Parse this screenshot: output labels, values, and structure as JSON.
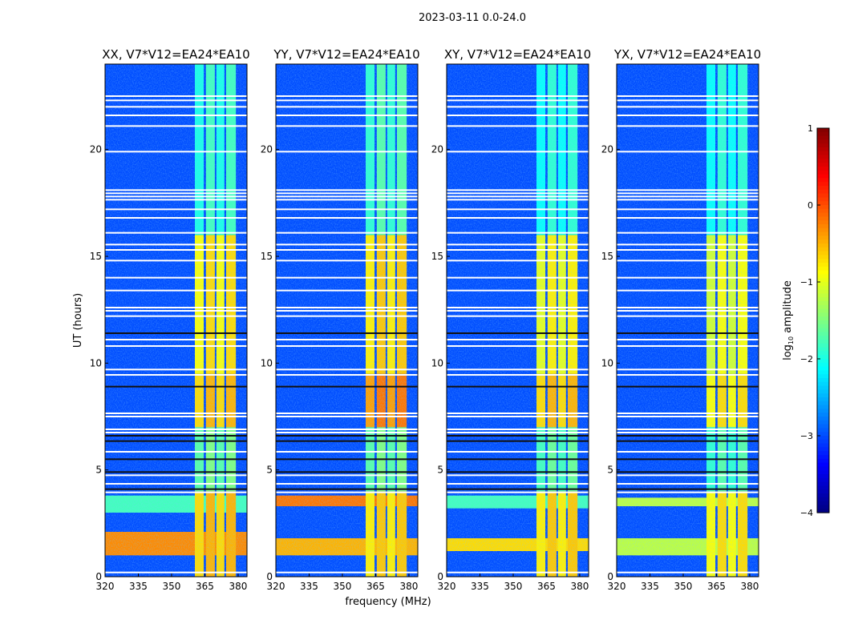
{
  "chart_data": {
    "type": "heatmap",
    "title": "2023-03-11 0.0-24.0",
    "xlabel": "frequency (MHz)",
    "ylabel": "UT (hours)",
    "xlim": [
      320,
      384
    ],
    "ylim": [
      0,
      24
    ],
    "xticks": [
      320,
      335,
      350,
      365,
      380
    ],
    "yticks": [
      0,
      5,
      10,
      15,
      20
    ],
    "colorbar": {
      "label_main": "log",
      "label_sub": "10",
      "label_rest": " amplitude",
      "range": [
        -4,
        1
      ],
      "ticks": [
        "1",
        "0",
        "−1",
        "−2",
        "−3",
        "−4"
      ],
      "tick_values": [
        1,
        0,
        -1,
        -2,
        -3,
        -4
      ],
      "colormap": "jet"
    },
    "background_level": -3.0,
    "bright_bands_mhz": [
      [
        360.5,
        364.5
      ],
      [
        365.5,
        369.5
      ],
      [
        370.2,
        373.8
      ],
      [
        374.6,
        379
      ]
    ],
    "flagged_rows_ut": [
      22.5,
      22.3,
      22.0,
      21.6,
      21.1,
      19.9,
      18.1,
      17.95,
      17.8,
      17.65,
      17.2,
      16.8,
      16.1,
      15.55,
      15.3,
      14.8,
      14.0,
      13.4,
      12.6,
      12.45,
      12.2,
      11.1,
      10.8,
      9.7,
      9.45,
      7.65,
      7.5,
      6.9,
      6.75,
      5.85,
      4.75,
      4.35,
      3.95,
      0.2
    ],
    "dark_rows_ut": [
      11.4,
      8.9,
      6.6,
      6.35,
      5.5,
      4.9,
      4.1
    ],
    "panels": [
      {
        "title": "XX, V7*V12=EA24*EA10",
        "band_levels": [
          {
            "t": [
              0,
              4
            ],
            "v": -0.6
          },
          {
            "t": [
              4,
              7
            ],
            "v": -1.6
          },
          {
            "t": [
              7,
              9.5
            ],
            "v": -0.6
          },
          {
            "t": [
              9.5,
              16
            ],
            "v": -0.8
          },
          {
            "t": [
              16,
              24
            ],
            "v": -1.9
          }
        ],
        "wideband_rows": [
          {
            "t": [
              1.0,
              2.1
            ],
            "v": -0.3
          },
          {
            "t": [
              3.0,
              3.8
            ],
            "v": -1.8
          }
        ]
      },
      {
        "title": "YY, V7*V12=EA24*EA10",
        "band_levels": [
          {
            "t": [
              0,
              4
            ],
            "v": -0.7
          },
          {
            "t": [
              4,
              7
            ],
            "v": -1.6
          },
          {
            "t": [
              7,
              9.5
            ],
            "v": -0.3
          },
          {
            "t": [
              9.5,
              16
            ],
            "v": -0.7
          },
          {
            "t": [
              16,
              24
            ],
            "v": -1.8
          }
        ],
        "wideband_rows": [
          {
            "t": [
              1.0,
              1.8
            ],
            "v": -0.5
          },
          {
            "t": [
              3.3,
              3.8
            ],
            "v": -0.2
          }
        ]
      },
      {
        "title": "XY, V7*V12=EA24*EA10",
        "band_levels": [
          {
            "t": [
              0,
              4
            ],
            "v": -0.7
          },
          {
            "t": [
              4,
              7
            ],
            "v": -1.7
          },
          {
            "t": [
              7,
              9.5
            ],
            "v": -0.6
          },
          {
            "t": [
              9.5,
              16
            ],
            "v": -0.9
          },
          {
            "t": [
              16,
              24
            ],
            "v": -2.0
          }
        ],
        "wideband_rows": [
          {
            "t": [
              1.2,
              1.8
            ],
            "v": -0.7
          },
          {
            "t": [
              3.2,
              3.8
            ],
            "v": -1.8
          }
        ]
      },
      {
        "title": "YX, V7*V12=EA24*EA10",
        "band_levels": [
          {
            "t": [
              0,
              4
            ],
            "v": -0.8
          },
          {
            "t": [
              4,
              7
            ],
            "v": -1.8
          },
          {
            "t": [
              7,
              9.5
            ],
            "v": -0.8
          },
          {
            "t": [
              9.5,
              16
            ],
            "v": -1.0
          },
          {
            "t": [
              16,
              24
            ],
            "v": -2.0
          }
        ],
        "wideband_rows": [
          {
            "t": [
              1.0,
              1.8
            ],
            "v": -1.2
          },
          {
            "t": [
              3.3,
              3.7
            ],
            "v": -1.2
          }
        ]
      }
    ]
  }
}
